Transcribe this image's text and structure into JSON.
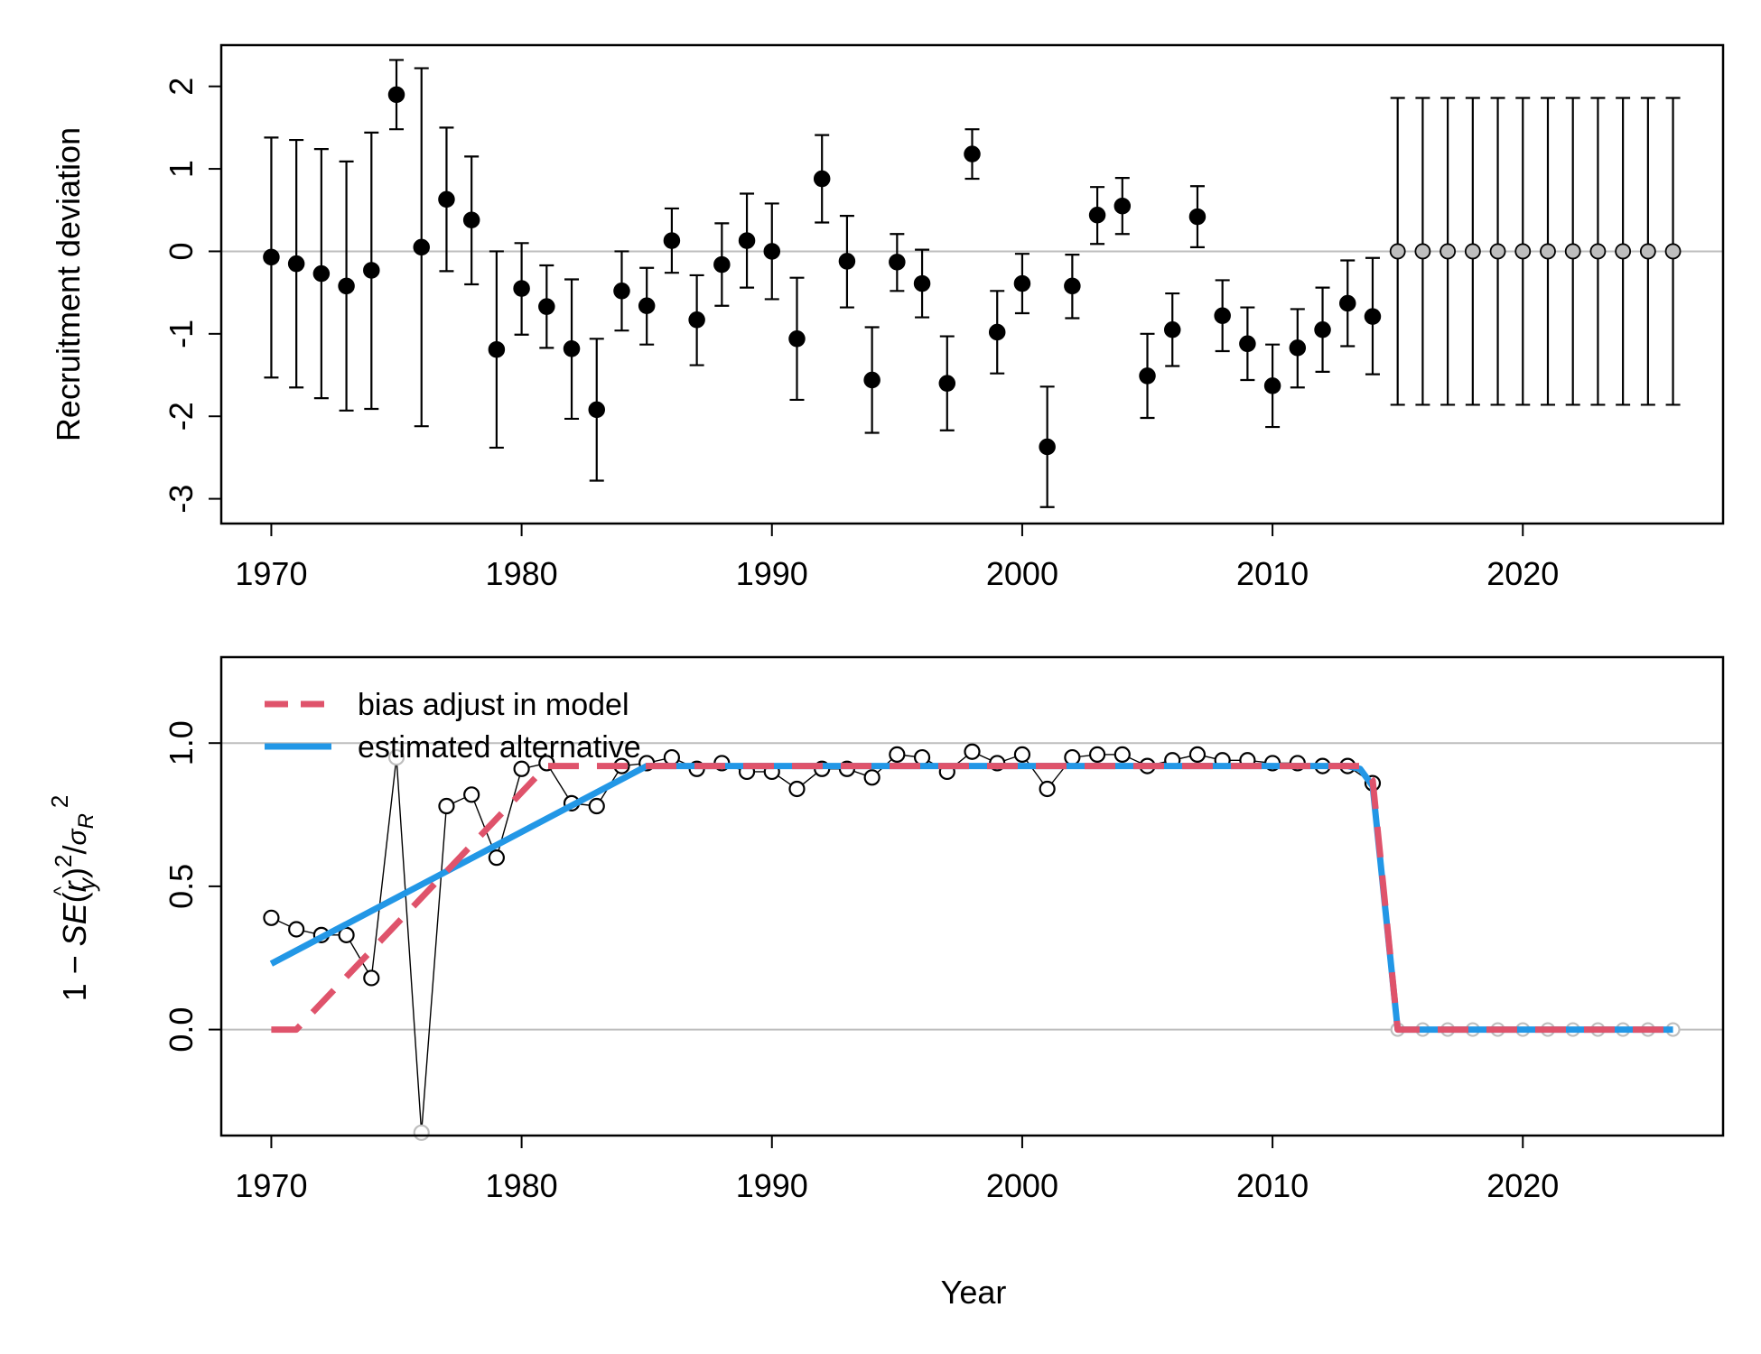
{
  "chart_data": [
    {
      "type": "scatter",
      "title": "",
      "xlabel": "",
      "ylabel": "Recruitment deviation",
      "xlim": [
        1968,
        2028
      ],
      "ylim": [
        -3.3,
        2.5
      ],
      "xticks": [
        1970,
        1980,
        1990,
        2000,
        2010,
        2020
      ],
      "xtick_labels": [
        "1970",
        "1980",
        "1990",
        "2000",
        "2010",
        "2020"
      ],
      "yticks": [
        -3,
        -2,
        -1,
        0,
        1,
        2
      ],
      "ytick_labels": [
        "-3",
        "-2",
        "-1",
        "0",
        "1",
        "2"
      ],
      "reference_line": 0,
      "colors": {
        "estimated": "#000000",
        "projected": "#bebebe",
        "reference": "#bebebe"
      },
      "estimated": [
        {
          "year": 1970,
          "dev": -0.07,
          "lo": -1.53,
          "hi": 1.38
        },
        {
          "year": 1971,
          "dev": -0.15,
          "lo": -1.65,
          "hi": 1.35
        },
        {
          "year": 1972,
          "dev": -0.27,
          "lo": -1.78,
          "hi": 1.24
        },
        {
          "year": 1973,
          "dev": -0.42,
          "lo": -1.93,
          "hi": 1.09
        },
        {
          "year": 1974,
          "dev": -0.23,
          "lo": -1.91,
          "hi": 1.44
        },
        {
          "year": 1975,
          "dev": 1.9,
          "lo": 1.48,
          "hi": 2.32
        },
        {
          "year": 1976,
          "dev": 0.05,
          "lo": -2.12,
          "hi": 2.22
        },
        {
          "year": 1977,
          "dev": 0.63,
          "lo": -0.24,
          "hi": 1.5
        },
        {
          "year": 1978,
          "dev": 0.38,
          "lo": -0.4,
          "hi": 1.15
        },
        {
          "year": 1979,
          "dev": -1.19,
          "lo": -2.38,
          "hi": 0.0
        },
        {
          "year": 1980,
          "dev": -0.45,
          "lo": -1.01,
          "hi": 0.1
        },
        {
          "year": 1981,
          "dev": -0.67,
          "lo": -1.17,
          "hi": -0.17
        },
        {
          "year": 1982,
          "dev": -1.18,
          "lo": -2.03,
          "hi": -0.34
        },
        {
          "year": 1983,
          "dev": -1.92,
          "lo": -2.78,
          "hi": -1.06
        },
        {
          "year": 1984,
          "dev": -0.48,
          "lo": -0.96,
          "hi": 0.0
        },
        {
          "year": 1985,
          "dev": -0.66,
          "lo": -1.13,
          "hi": -0.2
        },
        {
          "year": 1986,
          "dev": 0.13,
          "lo": -0.26,
          "hi": 0.52
        },
        {
          "year": 1987,
          "dev": -0.83,
          "lo": -1.38,
          "hi": -0.29
        },
        {
          "year": 1988,
          "dev": -0.16,
          "lo": -0.66,
          "hi": 0.34
        },
        {
          "year": 1989,
          "dev": 0.13,
          "lo": -0.44,
          "hi": 0.7
        },
        {
          "year": 1990,
          "dev": 0.0,
          "lo": -0.58,
          "hi": 0.58
        },
        {
          "year": 1991,
          "dev": -1.06,
          "lo": -1.8,
          "hi": -0.32
        },
        {
          "year": 1992,
          "dev": 0.88,
          "lo": 0.35,
          "hi": 1.41
        },
        {
          "year": 1993,
          "dev": -0.12,
          "lo": -0.68,
          "hi": 0.43
        },
        {
          "year": 1994,
          "dev": -1.56,
          "lo": -2.2,
          "hi": -0.92
        },
        {
          "year": 1995,
          "dev": -0.13,
          "lo": -0.48,
          "hi": 0.21
        },
        {
          "year": 1996,
          "dev": -0.39,
          "lo": -0.8,
          "hi": 0.02
        },
        {
          "year": 1997,
          "dev": -1.6,
          "lo": -2.17,
          "hi": -1.03
        },
        {
          "year": 1998,
          "dev": 1.18,
          "lo": 0.88,
          "hi": 1.48
        },
        {
          "year": 1999,
          "dev": -0.98,
          "lo": -1.48,
          "hi": -0.48
        },
        {
          "year": 2000,
          "dev": -0.39,
          "lo": -0.75,
          "hi": -0.03
        },
        {
          "year": 2001,
          "dev": -2.37,
          "lo": -3.1,
          "hi": -1.64
        },
        {
          "year": 2002,
          "dev": -0.42,
          "lo": -0.81,
          "hi": -0.04
        },
        {
          "year": 2003,
          "dev": 0.44,
          "lo": 0.09,
          "hi": 0.78
        },
        {
          "year": 2004,
          "dev": 0.55,
          "lo": 0.21,
          "hi": 0.89
        },
        {
          "year": 2005,
          "dev": -1.51,
          "lo": -2.02,
          "hi": -1.0
        },
        {
          "year": 2006,
          "dev": -0.95,
          "lo": -1.39,
          "hi": -0.51
        },
        {
          "year": 2007,
          "dev": 0.42,
          "lo": 0.05,
          "hi": 0.79
        },
        {
          "year": 2008,
          "dev": -0.78,
          "lo": -1.21,
          "hi": -0.35
        },
        {
          "year": 2009,
          "dev": -1.12,
          "lo": -1.56,
          "hi": -0.68
        },
        {
          "year": 2010,
          "dev": -1.63,
          "lo": -2.13,
          "hi": -1.13
        },
        {
          "year": 2011,
          "dev": -1.17,
          "lo": -1.65,
          "hi": -0.7
        },
        {
          "year": 2012,
          "dev": -0.95,
          "lo": -1.46,
          "hi": -0.44
        },
        {
          "year": 2013,
          "dev": -0.63,
          "lo": -1.15,
          "hi": -0.11
        },
        {
          "year": 2014,
          "dev": -0.79,
          "lo": -1.49,
          "hi": -0.08
        }
      ],
      "projected": {
        "years": [
          2015,
          2016,
          2017,
          2018,
          2019,
          2020,
          2021,
          2022,
          2023,
          2024,
          2025,
          2026
        ],
        "dev": 0,
        "lo": -1.86,
        "hi": 1.86
      }
    },
    {
      "type": "line",
      "title": "",
      "xlabel": "Year",
      "ylabel": "1 − SE(r̂y)²/σR²",
      "ylabel_parts": {
        "prefix": "1 − ",
        "se": "SE",
        "r": "r",
        "hat": "^",
        "sub_y": "y",
        "sq": "2",
        "sigma": "σ",
        "sub_R": "R"
      },
      "xlim": [
        1968,
        2028
      ],
      "ylim": [
        -0.37,
        1.3
      ],
      "xticks": [
        1970,
        1980,
        1990,
        2000,
        2010,
        2020
      ],
      "xtick_labels": [
        "1970",
        "1980",
        "1990",
        "2000",
        "2010",
        "2020"
      ],
      "yticks": [
        0,
        0.5,
        1.0
      ],
      "ytick_labels": [
        "0.0",
        "0.5",
        "1.0"
      ],
      "reference_lines": [
        0,
        1
      ],
      "legend_position": "top-left",
      "series": [
        {
          "name": "bias adjust in model",
          "color": "#df536b",
          "style": "dashed",
          "x": [
            1970,
            1971,
            1981,
            1985,
            2013.5,
            2014,
            2015,
            2026
          ],
          "y": [
            0,
            0,
            0.92,
            0.92,
            0.92,
            0.87,
            0,
            0
          ]
        },
        {
          "name": "estimated alternative",
          "color": "#2297e6",
          "style": "solid",
          "x": [
            1970,
            1985,
            2013,
            2013.5,
            2014,
            2015,
            2026
          ],
          "y": [
            0.23,
            0.92,
            0.92,
            0.91,
            0.85,
            0,
            0
          ]
        }
      ],
      "points": {
        "years": [
          1970,
          1971,
          1972,
          1973,
          1974,
          1975,
          1976,
          1977,
          1978,
          1979,
          1980,
          1981,
          1982,
          1983,
          1984,
          1985,
          1986,
          1987,
          1988,
          1989,
          1990,
          1991,
          1992,
          1993,
          1994,
          1995,
          1996,
          1997,
          1998,
          1999,
          2000,
          2001,
          2002,
          2003,
          2004,
          2005,
          2006,
          2007,
          2008,
          2009,
          2010,
          2011,
          2012,
          2013,
          2014
        ],
        "values": [
          0.39,
          0.35,
          0.33,
          0.33,
          0.18,
          0.95,
          -0.36,
          0.78,
          0.82,
          0.6,
          0.91,
          0.93,
          0.79,
          0.78,
          0.92,
          0.93,
          0.95,
          0.91,
          0.93,
          0.9,
          0.9,
          0.84,
          0.91,
          0.91,
          0.88,
          0.96,
          0.95,
          0.9,
          0.97,
          0.93,
          0.96,
          0.84,
          0.95,
          0.96,
          0.96,
          0.92,
          0.94,
          0.96,
          0.94,
          0.94,
          0.93,
          0.93,
          0.92,
          0.92,
          0.86
        ],
        "projected_years": [
          2015,
          2016,
          2017,
          2018,
          2019,
          2020,
          2021,
          2022,
          2023,
          2024,
          2025,
          2026
        ],
        "projected_value": 0
      },
      "colors": {
        "points": "#000000",
        "projected": "#bebebe",
        "reference": "#bebebe"
      }
    }
  ]
}
